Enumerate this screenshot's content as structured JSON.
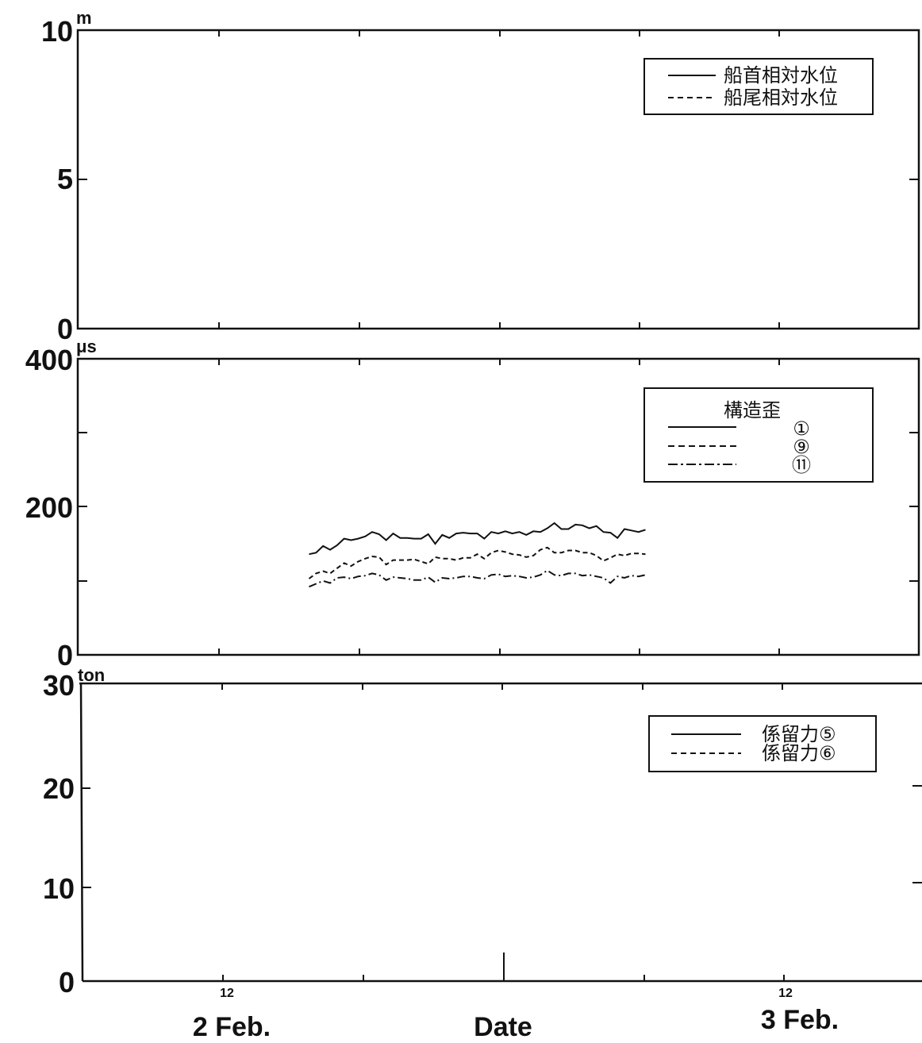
{
  "chart_data": [
    {
      "type": "line",
      "ylabel": "m",
      "ylim": [
        0,
        10
      ],
      "yticks": [
        "0",
        "5",
        "10"
      ],
      "legend": {
        "placement": "top-right",
        "entries": [
          {
            "label": "船首相対水位",
            "style": "solid"
          },
          {
            "label": "船尾相対水位",
            "style": "dashed"
          }
        ]
      },
      "series": []
    },
    {
      "type": "line",
      "ylabel": "μs",
      "ylim": [
        0,
        400
      ],
      "yticks": [
        "0",
        "200",
        "400"
      ],
      "legend": {
        "placement": "top-right",
        "title": "構造歪",
        "entries": [
          {
            "label": "①",
            "style": "solid"
          },
          {
            "label": "⑨",
            "style": "dashed"
          },
          {
            "label": "⑪",
            "style": "dashdot"
          }
        ]
      },
      "x": [
        16.5,
        17,
        17.5,
        18,
        18.5,
        19,
        19.5,
        20,
        20.5,
        21,
        21.5,
        22,
        22.5,
        23,
        23.5,
        24,
        24.5,
        25,
        25.5,
        26,
        26.5,
        27,
        27.5,
        28,
        28.5,
        29,
        29.5,
        30,
        30.5,
        31,
        31.5,
        32,
        32.5,
        33,
        33.5,
        34,
        34.5,
        35,
        35.5,
        36,
        36.5,
        37,
        37.5,
        38,
        38.5,
        39,
        39.5,
        40,
        40.5
      ],
      "series": [
        {
          "name": "①",
          "style": "solid",
          "values": [
            136,
            138,
            147,
            142,
            148,
            157,
            155,
            157,
            160,
            166,
            163,
            155,
            164,
            158,
            158,
            157,
            157,
            163,
            150,
            162,
            158,
            164,
            165,
            164,
            164,
            157,
            166,
            164,
            167,
            164,
            166,
            162,
            167,
            166,
            171,
            178,
            170,
            170,
            176,
            175,
            171,
            174,
            166,
            165,
            158,
            170,
            168,
            166,
            169
          ]
        },
        {
          "name": "⑨",
          "style": "dashed",
          "values": [
            103,
            110,
            113,
            110,
            117,
            124,
            120,
            126,
            130,
            133,
            132,
            122,
            128,
            128,
            128,
            129,
            126,
            123,
            132,
            130,
            130,
            128,
            131,
            131,
            136,
            130,
            138,
            141,
            139,
            136,
            135,
            132,
            134,
            142,
            145,
            138,
            138,
            141,
            141,
            138,
            138,
            134,
            127,
            131,
            136,
            134,
            137,
            137,
            136
          ]
        },
        {
          "name": "⑪",
          "style": "dashdot",
          "values": [
            92,
            96,
            100,
            97,
            104,
            105,
            103,
            106,
            107,
            110,
            108,
            101,
            105,
            104,
            103,
            101,
            101,
            105,
            98,
            104,
            103,
            104,
            106,
            106,
            104,
            103,
            108,
            109,
            106,
            107,
            106,
            104,
            105,
            108,
            114,
            108,
            107,
            110,
            110,
            107,
            108,
            106,
            104,
            97,
            106,
            104,
            107,
            106,
            108
          ]
        }
      ]
    },
    {
      "type": "line",
      "ylabel": "ton",
      "ylim": [
        0,
        30
      ],
      "yticks": [
        "0",
        "10",
        "20",
        "30"
      ],
      "xlabel": "Date",
      "xtick_labels": [
        {
          "hour": "12",
          "date": "2 Feb."
        },
        {
          "hour": "12",
          "date": "3 Feb."
        }
      ],
      "legend": {
        "placement": "top-right",
        "entries": [
          {
            "label": "係留力⑤",
            "style": "solid"
          },
          {
            "label": "係留力⑥",
            "style": "dashed"
          }
        ]
      },
      "series": []
    }
  ]
}
